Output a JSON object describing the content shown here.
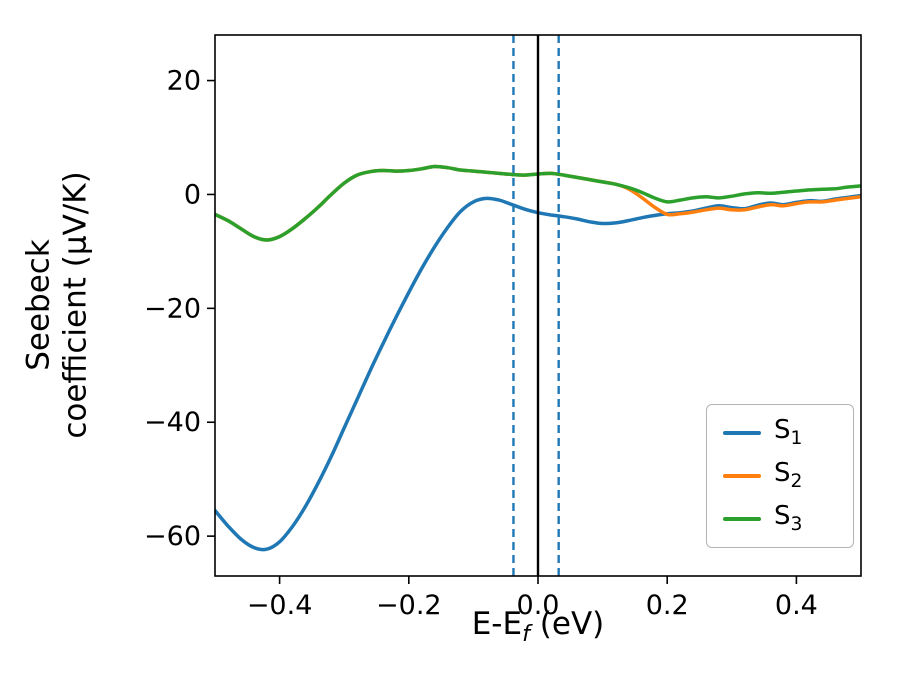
{
  "chart_data": {
    "type": "line",
    "title": "",
    "xlabel": {
      "pre": "E-E",
      "sub": "f",
      "post": " (eV)"
    },
    "ylabel": {
      "line1": "Seebeck",
      "line2": "coefficient  (μV/K)"
    },
    "xlim": [
      -0.5,
      0.5
    ],
    "ylim": [
      -67,
      28
    ],
    "grid": false,
    "legend_position": "lower right",
    "xticks": {
      "values": [
        -0.4,
        -0.2,
        0.0,
        0.2,
        0.4
      ],
      "labels": [
        "−0.4",
        "−0.2",
        "0.0",
        "0.2",
        "0.4"
      ]
    },
    "yticks": {
      "values": [
        20,
        0,
        -20,
        -40,
        -60
      ],
      "labels": [
        "20",
        "0",
        "−20",
        "−40",
        "−60"
      ]
    },
    "vlines": [
      {
        "x": -0.038,
        "color": "#1f77b4",
        "style": "dashed"
      },
      {
        "x": 0.0,
        "color": "#000000",
        "style": "solid"
      },
      {
        "x": 0.032,
        "color": "#1f77b4",
        "style": "dashed"
      }
    ],
    "x": [
      -0.5,
      -0.48,
      -0.46,
      -0.44,
      -0.42,
      -0.4,
      -0.38,
      -0.36,
      -0.34,
      -0.32,
      -0.3,
      -0.28,
      -0.26,
      -0.24,
      -0.22,
      -0.2,
      -0.18,
      -0.16,
      -0.14,
      -0.12,
      -0.1,
      -0.08,
      -0.06,
      -0.04,
      -0.02,
      0.0,
      0.02,
      0.04,
      0.06,
      0.08,
      0.1,
      0.12,
      0.14,
      0.16,
      0.18,
      0.2,
      0.22,
      0.24,
      0.26,
      0.28,
      0.3,
      0.32,
      0.34,
      0.36,
      0.38,
      0.4,
      0.42,
      0.44,
      0.46,
      0.48,
      0.5
    ],
    "series": [
      {
        "name": "S1",
        "label_base": "S",
        "label_sub": "1",
        "color": "#1f77b4",
        "y": [
          -55.5,
          -58.2,
          -60.5,
          -62.0,
          -62.3,
          -61.0,
          -58.3,
          -54.8,
          -50.6,
          -46.0,
          -41.0,
          -36.0,
          -31.0,
          -26.2,
          -21.6,
          -17.2,
          -13.0,
          -9.2,
          -5.8,
          -3.0,
          -1.3,
          -0.7,
          -1.0,
          -1.8,
          -2.6,
          -3.2,
          -3.6,
          -3.9,
          -4.3,
          -4.8,
          -5.1,
          -5.0,
          -4.6,
          -4.1,
          -3.7,
          -3.4,
          -3.2,
          -2.9,
          -2.4,
          -2.0,
          -2.3,
          -2.5,
          -1.9,
          -1.5,
          -1.8,
          -1.4,
          -1.1,
          -1.2,
          -0.8,
          -0.5,
          -0.2
        ]
      },
      {
        "name": "S2",
        "label_base": "S",
        "label_sub": "2",
        "color": "#ff7f0e",
        "y": [
          -3.5,
          -4.6,
          -6.0,
          -7.4,
          -8.0,
          -7.4,
          -6.0,
          -4.2,
          -2.2,
          0.0,
          2.0,
          3.4,
          4.0,
          4.2,
          4.1,
          4.2,
          4.5,
          4.9,
          4.7,
          4.3,
          4.1,
          3.9,
          3.7,
          3.5,
          3.4,
          3.6,
          3.7,
          3.4,
          3.0,
          2.6,
          2.2,
          1.8,
          1.0,
          -0.5,
          -2.2,
          -3.5,
          -3.4,
          -3.1,
          -2.7,
          -2.4,
          -2.7,
          -2.7,
          -2.2,
          -1.8,
          -2.0,
          -1.6,
          -1.3,
          -1.3,
          -1.0,
          -0.7,
          -0.4
        ]
      },
      {
        "name": "S3",
        "label_base": "S",
        "label_sub": "3",
        "color": "#2ca02c",
        "y": [
          -3.5,
          -4.6,
          -6.0,
          -7.4,
          -8.0,
          -7.4,
          -6.0,
          -4.2,
          -2.2,
          0.0,
          2.0,
          3.4,
          4.0,
          4.2,
          4.1,
          4.2,
          4.5,
          4.9,
          4.7,
          4.3,
          4.1,
          3.9,
          3.7,
          3.5,
          3.4,
          3.6,
          3.7,
          3.4,
          3.0,
          2.6,
          2.2,
          1.8,
          1.2,
          0.4,
          -0.6,
          -1.3,
          -1.0,
          -0.6,
          -0.4,
          -0.6,
          -0.3,
          0.1,
          0.3,
          0.2,
          0.4,
          0.6,
          0.8,
          0.9,
          1.0,
          1.3,
          1.5
        ]
      }
    ]
  }
}
